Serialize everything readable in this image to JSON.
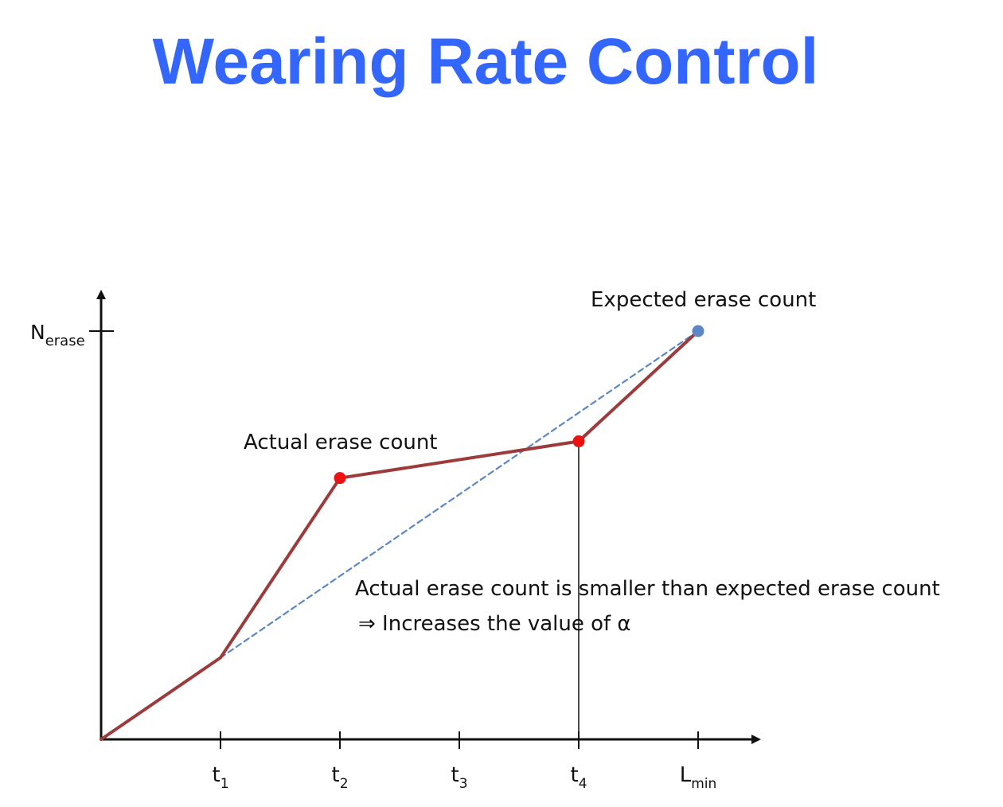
{
  "page": {
    "title": "Wearing Rate Control"
  },
  "chart_data": {
    "type": "line",
    "title": "",
    "x": [
      "0",
      "t1",
      "t2",
      "t3",
      "t4",
      "Lmin"
    ],
    "x_ticks": [
      {
        "base": "t",
        "sub": "1"
      },
      {
        "base": "t",
        "sub": "2"
      },
      {
        "base": "t",
        "sub": "3"
      },
      {
        "base": "t",
        "sub": "4"
      },
      {
        "base": "L",
        "sub": "min"
      }
    ],
    "y_axis": {
      "base": "N",
      "sub": "erase",
      "value": 1.0
    },
    "ylim": [
      0,
      1.0
    ],
    "series": [
      {
        "name": "Actual erase count",
        "color": "#9b3b3b",
        "style": "solid",
        "values": [
          0.0,
          0.2,
          0.64,
          null,
          0.73,
          1.0
        ]
      },
      {
        "name": "Expected erase count",
        "color": "#5b87c5",
        "style": "dashed",
        "values": [
          null,
          0.2,
          null,
          null,
          null,
          1.0
        ]
      }
    ],
    "markers": [
      {
        "x": "t2",
        "y": 0.64,
        "color": "#ee1111"
      },
      {
        "x": "t4",
        "y": 0.73,
        "color": "#ee1111"
      },
      {
        "x": "Lmin",
        "y": 1.0,
        "color": "#5b87c5"
      }
    ],
    "vertical_line_at": "t4",
    "annotations": {
      "expected_label": "Expected erase count",
      "actual_label": "Actual erase count",
      "note_line1": "Actual erase count is smaller than expected erase count",
      "note_line2": "⇒ Increases the value of α"
    }
  }
}
